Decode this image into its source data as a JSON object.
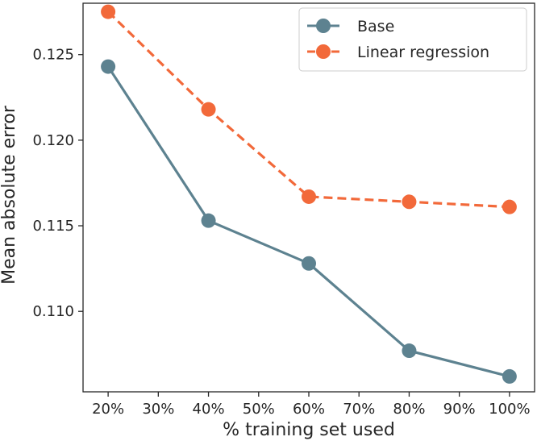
{
  "chart_data": {
    "type": "line",
    "title": "",
    "xlabel": "% training set used",
    "ylabel": "Mean absolute error",
    "x": [
      20,
      40,
      60,
      80,
      100
    ],
    "xlim": [
      15,
      105
    ],
    "ylim": [
      0.1053,
      0.128
    ],
    "grid": false,
    "legend_position": "top-right",
    "x_ticks": [
      {
        "value": 20,
        "label": "20%"
      },
      {
        "value": 30,
        "label": "30%"
      },
      {
        "value": 40,
        "label": "40%"
      },
      {
        "value": 50,
        "label": "50%"
      },
      {
        "value": 60,
        "label": "60%"
      },
      {
        "value": 70,
        "label": "70%"
      },
      {
        "value": 80,
        "label": "80%"
      },
      {
        "value": 90,
        "label": "90%"
      },
      {
        "value": 100,
        "label": "100%"
      }
    ],
    "y_ticks": [
      {
        "value": 0.11,
        "label": "0.110"
      },
      {
        "value": 0.115,
        "label": "0.115"
      },
      {
        "value": 0.12,
        "label": "0.120"
      },
      {
        "value": 0.125,
        "label": "0.125"
      }
    ],
    "series": [
      {
        "name": "Base",
        "color": "#5d8290",
        "line_style": "solid",
        "marker": "circle",
        "values": [
          0.1243,
          0.1153,
          0.1128,
          0.1077,
          0.1062
        ]
      },
      {
        "name": "Linear regression",
        "color": "#f2693a",
        "line_style": "dashed",
        "marker": "circle",
        "values": [
          0.1275,
          0.1218,
          0.1167,
          0.1164,
          0.1161
        ]
      }
    ]
  }
}
